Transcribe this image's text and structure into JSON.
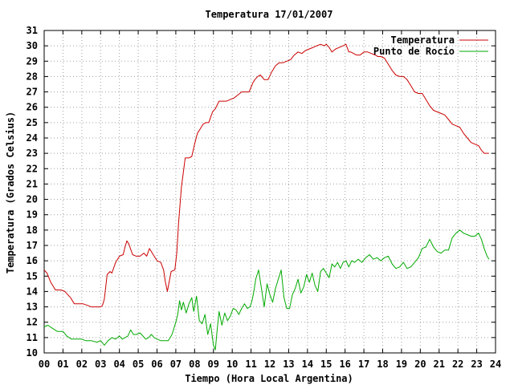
{
  "chart_data": {
    "type": "line",
    "title": "Temperatura 17/01/2007",
    "xlabel": "Tiempo (Hora Local Argentina)",
    "ylabel": "Temperatura (Grados Celsius)",
    "xlim": [
      0,
      24
    ],
    "ylim": [
      10,
      31
    ],
    "grid": true,
    "legend_position": "top-right",
    "x_ticks": [
      0,
      1,
      2,
      3,
      4,
      5,
      6,
      7,
      8,
      9,
      10,
      11,
      12,
      13,
      14,
      15,
      16,
      17,
      18,
      19,
      20,
      21,
      22,
      23,
      24
    ],
    "x_tick_labels": [
      "00",
      "01",
      "02",
      "03",
      "04",
      "05",
      "06",
      "07",
      "08",
      "09",
      "10",
      "11",
      "12",
      "13",
      "14",
      "15",
      "16",
      "17",
      "18",
      "19",
      "20",
      "21",
      "22",
      "23",
      "24"
    ],
    "y_ticks": [
      10,
      11,
      12,
      13,
      14,
      15,
      16,
      17,
      18,
      19,
      20,
      21,
      22,
      23,
      24,
      25,
      26,
      27,
      28,
      29,
      30,
      31
    ],
    "series": [
      {
        "name": "Temperatura",
        "color": "#cc0000",
        "x": [
          0.0,
          0.15,
          0.35,
          0.6,
          0.9,
          1.1,
          1.4,
          1.6,
          1.8,
          2.05,
          2.3,
          2.5,
          2.75,
          3.0,
          3.1,
          3.2,
          3.35,
          3.5,
          3.6,
          3.8,
          4.0,
          4.2,
          4.3,
          4.4,
          4.5,
          4.7,
          4.9,
          5.1,
          5.3,
          5.45,
          5.6,
          5.8,
          6.0,
          6.2,
          6.35,
          6.45,
          6.55,
          6.75,
          6.95,
          7.05,
          7.15,
          7.3,
          7.5,
          7.7,
          7.85,
          8.0,
          8.15,
          8.3,
          8.45,
          8.6,
          8.75,
          8.95,
          9.1,
          9.3,
          9.5,
          9.7,
          9.9,
          10.1,
          10.3,
          10.5,
          10.7,
          10.9,
          11.0,
          11.1,
          11.2,
          11.35,
          11.5,
          11.7,
          11.9,
          12.1,
          12.3,
          12.5,
          12.7,
          12.9,
          13.1,
          13.3,
          13.5,
          13.7,
          13.9,
          14.1,
          14.3,
          14.5,
          14.7,
          14.9,
          15.0,
          15.15,
          15.3,
          15.5,
          15.7,
          15.9,
          16.05,
          16.2,
          16.3,
          16.45,
          16.6,
          16.8,
          17.0,
          17.2,
          17.4,
          17.6,
          17.75,
          17.9,
          18.1,
          18.3,
          18.5,
          18.7,
          18.9,
          19.1,
          19.3,
          19.5,
          19.7,
          19.9,
          20.1,
          20.3,
          20.5,
          20.7,
          20.9,
          21.1,
          21.3,
          21.5,
          21.7,
          21.9,
          22.1,
          22.3,
          22.5,
          22.7,
          22.9,
          23.1,
          23.25,
          23.4,
          23.55,
          23.65
        ],
        "y": [
          15.4,
          15.2,
          14.6,
          14.1,
          14.1,
          14.0,
          13.6,
          13.2,
          13.2,
          13.2,
          13.1,
          13.0,
          13.0,
          13.0,
          13.1,
          13.5,
          15.1,
          15.3,
          15.2,
          15.9,
          16.3,
          16.4,
          16.9,
          17.3,
          17.1,
          16.4,
          16.3,
          16.3,
          16.5,
          16.3,
          16.8,
          16.4,
          16.0,
          15.9,
          15.4,
          14.6,
          14.0,
          15.3,
          15.4,
          16.5,
          18.5,
          20.8,
          22.7,
          22.7,
          22.8,
          23.6,
          24.3,
          24.6,
          24.9,
          25.0,
          25.0,
          25.7,
          25.9,
          26.4,
          26.4,
          26.4,
          26.5,
          26.6,
          26.8,
          27.0,
          27.0,
          27.0,
          27.3,
          27.6,
          27.8,
          28.0,
          28.1,
          27.8,
          27.8,
          28.3,
          28.7,
          28.9,
          28.9,
          29.0,
          29.1,
          29.4,
          29.6,
          29.5,
          29.7,
          29.8,
          29.9,
          30.0,
          30.1,
          30.0,
          30.1,
          29.9,
          29.6,
          29.8,
          29.9,
          30.0,
          30.1,
          29.6,
          29.6,
          29.5,
          29.4,
          29.4,
          29.6,
          29.6,
          29.5,
          29.4,
          29.3,
          29.3,
          29.2,
          28.8,
          28.4,
          28.1,
          28.0,
          28.0,
          27.8,
          27.4,
          27.0,
          26.9,
          26.9,
          26.5,
          26.1,
          25.8,
          25.7,
          25.6,
          25.5,
          25.2,
          24.9,
          24.8,
          24.7,
          24.3,
          24.0,
          23.7,
          23.6,
          23.5,
          23.2,
          23.0,
          23.0,
          23.0
        ]
      },
      {
        "name": "Punto de Rocío",
        "color": "#00aa00",
        "x": [
          0.0,
          0.2,
          0.45,
          0.7,
          1.0,
          1.2,
          1.45,
          1.7,
          2.0,
          2.2,
          2.5,
          2.8,
          3.0,
          3.2,
          3.4,
          3.6,
          3.8,
          4.0,
          4.15,
          4.3,
          4.45,
          4.6,
          4.75,
          4.9,
          5.1,
          5.25,
          5.4,
          5.55,
          5.7,
          5.85,
          6.0,
          6.2,
          6.4,
          6.6,
          6.8,
          7.0,
          7.1,
          7.2,
          7.3,
          7.4,
          7.55,
          7.7,
          7.85,
          7.95,
          8.1,
          8.25,
          8.4,
          8.55,
          8.7,
          8.85,
          9.0,
          9.1,
          9.2,
          9.3,
          9.45,
          9.6,
          9.75,
          9.9,
          10.05,
          10.2,
          10.35,
          10.5,
          10.65,
          10.8,
          10.95,
          11.05,
          11.15,
          11.25,
          11.4,
          11.55,
          11.7,
          11.85,
          12.0,
          12.15,
          12.3,
          12.45,
          12.6,
          12.75,
          12.9,
          13.05,
          13.2,
          13.35,
          13.5,
          13.65,
          13.8,
          13.95,
          14.1,
          14.25,
          14.4,
          14.55,
          14.7,
          14.85,
          15.0,
          15.15,
          15.3,
          15.45,
          15.6,
          15.75,
          15.9,
          16.05,
          16.2,
          16.35,
          16.5,
          16.7,
          16.9,
          17.1,
          17.3,
          17.5,
          17.7,
          17.9,
          18.1,
          18.3,
          18.5,
          18.7,
          18.9,
          19.1,
          19.3,
          19.5,
          19.7,
          19.9,
          20.1,
          20.3,
          20.5,
          20.7,
          20.9,
          21.1,
          21.3,
          21.5,
          21.7,
          21.9,
          22.1,
          22.3,
          22.5,
          22.7,
          22.9,
          23.1,
          23.25,
          23.4,
          23.55,
          23.65
        ],
        "y": [
          11.7,
          11.8,
          11.6,
          11.4,
          11.4,
          11.1,
          10.9,
          10.9,
          10.9,
          10.8,
          10.8,
          10.7,
          10.8,
          10.5,
          10.8,
          11.0,
          10.9,
          11.1,
          10.9,
          11.0,
          11.1,
          11.5,
          11.2,
          11.2,
          11.3,
          11.1,
          10.9,
          11.0,
          11.2,
          11.0,
          10.9,
          10.8,
          10.8,
          10.8,
          11.2,
          12.0,
          12.5,
          13.4,
          12.8,
          13.3,
          12.6,
          13.2,
          13.6,
          12.7,
          13.7,
          12.1,
          11.9,
          12.5,
          11.2,
          11.9,
          10.5,
          10.2,
          11.5,
          12.7,
          11.8,
          12.6,
          12.1,
          12.4,
          12.9,
          12.8,
          12.5,
          12.9,
          13.2,
          12.9,
          13.0,
          13.4,
          14.0,
          14.8,
          15.4,
          14.2,
          13.0,
          14.5,
          13.8,
          13.3,
          14.2,
          14.8,
          15.4,
          13.6,
          12.9,
          12.9,
          13.8,
          14.2,
          14.8,
          13.9,
          14.3,
          15.1,
          14.6,
          15.2,
          14.4,
          14.0,
          15.3,
          15.5,
          15.2,
          14.9,
          15.8,
          15.6,
          15.9,
          15.5,
          15.9,
          16.0,
          15.6,
          16.0,
          15.9,
          16.1,
          15.9,
          16.2,
          16.4,
          16.1,
          16.2,
          16.0,
          16.2,
          16.3,
          15.8,
          15.5,
          15.6,
          15.9,
          15.5,
          15.6,
          15.9,
          16.2,
          16.8,
          16.9,
          17.4,
          16.9,
          16.6,
          16.5,
          16.7,
          16.7,
          17.5,
          17.8,
          18.0,
          17.8,
          17.7,
          17.6,
          17.6,
          17.8,
          17.4,
          16.8,
          16.3,
          16.1
        ]
      }
    ]
  }
}
